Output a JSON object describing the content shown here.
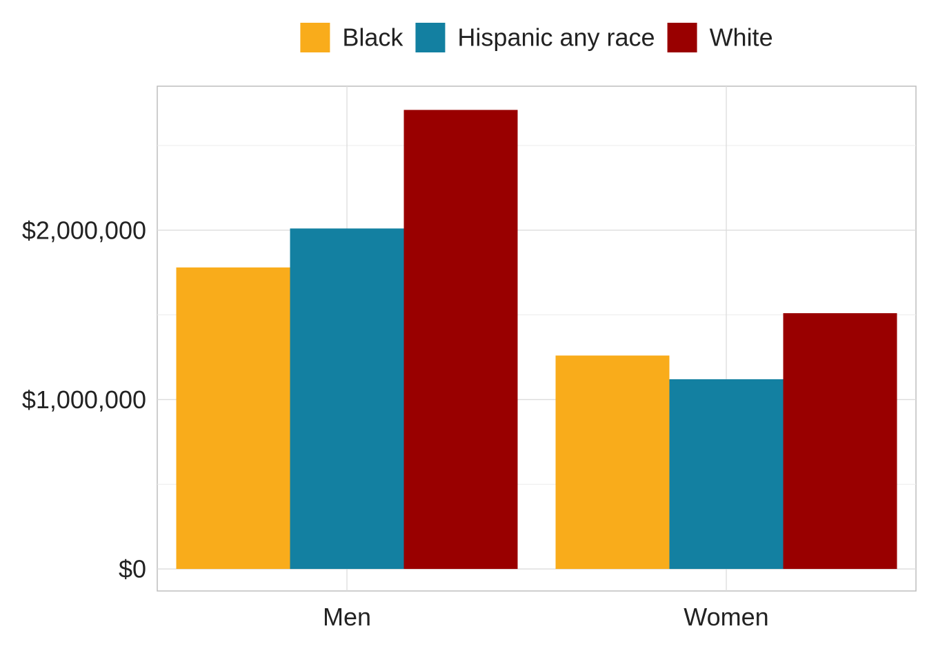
{
  "chart_data": {
    "type": "bar",
    "categories": [
      "Men",
      "Women"
    ],
    "series": [
      {
        "name": "Black",
        "values": [
          1780000,
          1260000
        ],
        "color": "#F9AC1B"
      },
      {
        "name": "Hispanic any race",
        "values": [
          2010000,
          1120000
        ],
        "color": "#1380A1"
      },
      {
        "name": "White",
        "values": [
          2710000,
          1510000
        ],
        "color": "#990000"
      }
    ],
    "ylim": [
      -130000,
      2850000
    ],
    "y_ticks": [
      {
        "value": 0,
        "label": "$0"
      },
      {
        "value": 1000000,
        "label": "$1,000,000"
      },
      {
        "value": 2000000,
        "label": "$2,000,000"
      }
    ],
    "y_minor_ticks": [
      500000,
      1500000,
      2500000
    ],
    "title": "",
    "xlabel": "",
    "ylabel": "",
    "legend_position": "top",
    "grid": true
  }
}
